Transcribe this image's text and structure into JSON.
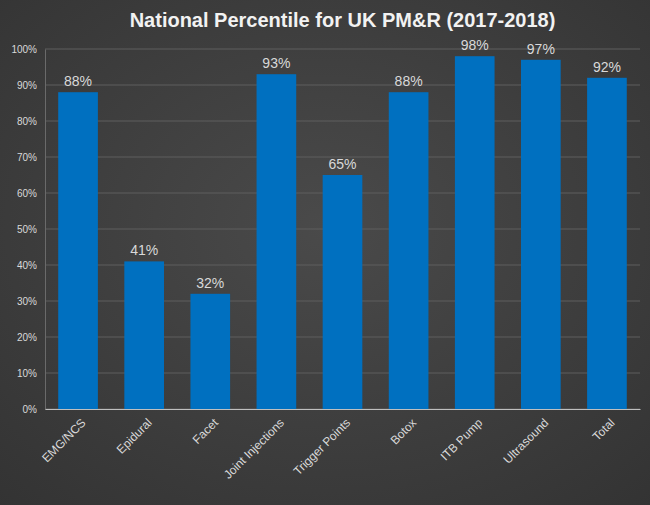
{
  "chart_data": {
    "type": "bar",
    "title": "National Percentile for UK PM&R (2017-2018)",
    "categories": [
      "EMG/NCS",
      "Epidural",
      "Facet",
      "Joint Injections",
      "Trigger Points",
      "Botox",
      "ITB Pump",
      "Ultrasound",
      "Total"
    ],
    "values": [
      88,
      41,
      32,
      93,
      65,
      88,
      98,
      97,
      92
    ],
    "value_labels": [
      "88%",
      "41%",
      "32%",
      "93%",
      "65%",
      "88%",
      "98%",
      "97%",
      "92%"
    ],
    "color": "#0070c0",
    "ylim": [
      0,
      100
    ],
    "yticks": [
      {
        "value": 0,
        "label": "0%"
      },
      {
        "value": 10,
        "label": "10%"
      },
      {
        "value": 20,
        "label": "20%"
      },
      {
        "value": 30,
        "label": "30%"
      },
      {
        "value": 40,
        "label": "40%"
      },
      {
        "value": 50,
        "label": "50%"
      },
      {
        "value": 60,
        "label": "60%"
      },
      {
        "value": 70,
        "label": "70%"
      },
      {
        "value": 80,
        "label": "80%"
      },
      {
        "value": 90,
        "label": "90%"
      },
      {
        "value": 100,
        "label": "100%"
      }
    ],
    "grid": true,
    "data_labels": true
  }
}
